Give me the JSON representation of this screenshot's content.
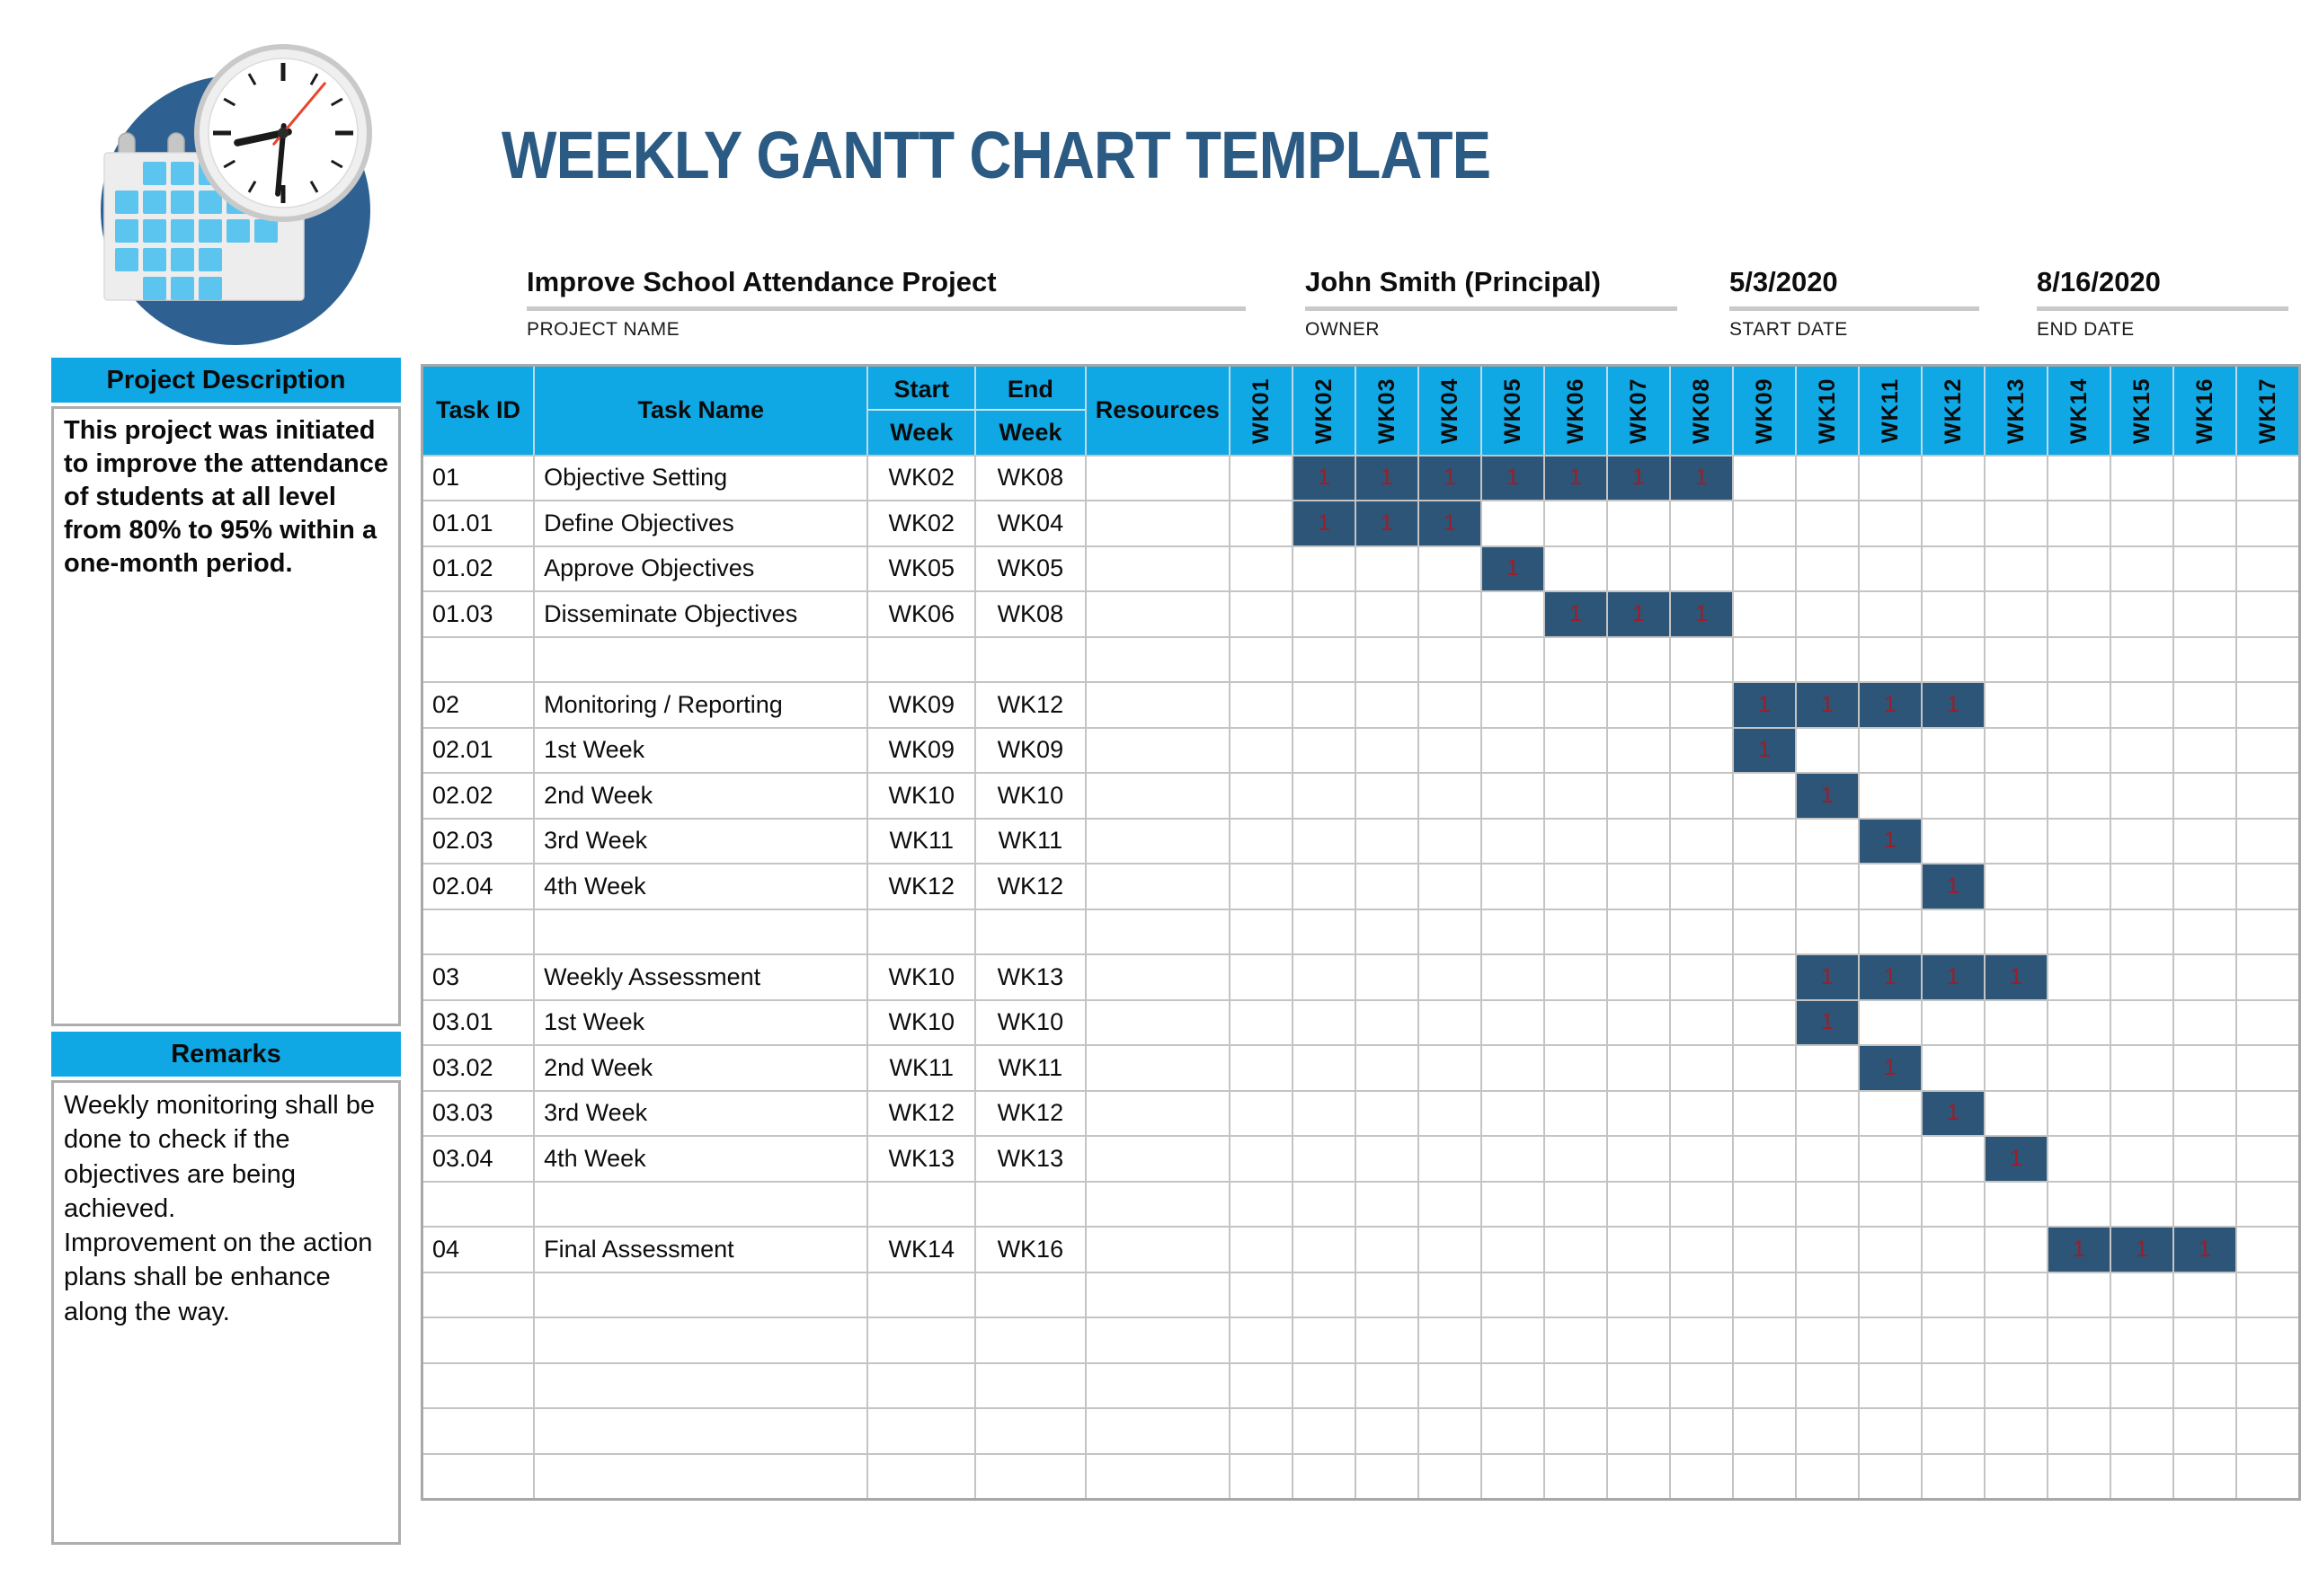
{
  "title": "WEEKLY GANTT CHART TEMPLATE",
  "logo": {
    "icon": "calendar-clock-logo",
    "parts": [
      "calendar-icon",
      "clock-icon"
    ]
  },
  "project_info": {
    "project_name": {
      "value": "Improve School Attendance Project",
      "label": "PROJECT NAME"
    },
    "owner": {
      "value": "John Smith (Principal)",
      "label": "OWNER"
    },
    "start_date": {
      "value": "5/3/2020",
      "label": "START DATE"
    },
    "end_date": {
      "value": "8/16/2020",
      "label": "END DATE"
    }
  },
  "sidebar": {
    "description": {
      "header": "Project Description",
      "body": "This project was initiated to improve the attendance of students at all level from 80% to 95% within a one-month period."
    },
    "remarks": {
      "header": "Remarks",
      "body": "Weekly monitoring shall be done to check if the objectives are being achieved.\nImprovement on the action plans shall be enhance along the way."
    }
  },
  "table": {
    "columns": {
      "task_id": "Task ID",
      "task_name": "Task Name",
      "start_week": {
        "line1": "Start",
        "line2": "Week"
      },
      "end_week": {
        "line1": "End",
        "line2": "Week"
      },
      "resources": "Resources"
    },
    "week_columns": [
      "WK01",
      "WK02",
      "WK03",
      "WK04",
      "WK05",
      "WK06",
      "WK07",
      "WK08",
      "WK09",
      "WK10",
      "WK11",
      "WK12",
      "WK13",
      "WK14",
      "WK15",
      "WK16",
      "WK17"
    ],
    "bar_value": "1",
    "rows": [
      {
        "task_id": "01",
        "task_name": "Objective Setting",
        "start_week": "WK02",
        "end_week": "WK08",
        "resources": "",
        "bar_weeks": [
          2,
          3,
          4,
          5,
          6,
          7,
          8
        ]
      },
      {
        "task_id": "01.01",
        "task_name": "Define Objectives",
        "start_week": "WK02",
        "end_week": "WK04",
        "resources": "",
        "bar_weeks": [
          2,
          3,
          4
        ]
      },
      {
        "task_id": "01.02",
        "task_name": "Approve Objectives",
        "start_week": "WK05",
        "end_week": "WK05",
        "resources": "",
        "bar_weeks": [
          5
        ]
      },
      {
        "task_id": "01.03",
        "task_name": "Disseminate Objectives",
        "start_week": "WK06",
        "end_week": "WK08",
        "resources": "",
        "bar_weeks": [
          6,
          7,
          8
        ]
      },
      {
        "task_id": "",
        "task_name": "",
        "start_week": "",
        "end_week": "",
        "resources": "",
        "bar_weeks": []
      },
      {
        "task_id": "02",
        "task_name": "Monitoring / Reporting",
        "start_week": "WK09",
        "end_week": "WK12",
        "resources": "",
        "bar_weeks": [
          9,
          10,
          11,
          12
        ]
      },
      {
        "task_id": "02.01",
        "task_name": "1st Week",
        "start_week": "WK09",
        "end_week": "WK09",
        "resources": "",
        "bar_weeks": [
          9
        ]
      },
      {
        "task_id": "02.02",
        "task_name": "2nd Week",
        "start_week": "WK10",
        "end_week": "WK10",
        "resources": "",
        "bar_weeks": [
          10
        ]
      },
      {
        "task_id": "02.03",
        "task_name": "3rd Week",
        "start_week": "WK11",
        "end_week": "WK11",
        "resources": "",
        "bar_weeks": [
          11
        ]
      },
      {
        "task_id": "02.04",
        "task_name": "4th Week",
        "start_week": "WK12",
        "end_week": "WK12",
        "resources": "",
        "bar_weeks": [
          12
        ]
      },
      {
        "task_id": "",
        "task_name": "",
        "start_week": "",
        "end_week": "",
        "resources": "",
        "bar_weeks": []
      },
      {
        "task_id": "03",
        "task_name": "Weekly Assessment",
        "start_week": "WK10",
        "end_week": "WK13",
        "resources": "",
        "bar_weeks": [
          10,
          11,
          12,
          13
        ]
      },
      {
        "task_id": "03.01",
        "task_name": "1st Week",
        "start_week": "WK10",
        "end_week": "WK10",
        "resources": "",
        "bar_weeks": [
          10
        ]
      },
      {
        "task_id": "03.02",
        "task_name": "2nd Week",
        "start_week": "WK11",
        "end_week": "WK11",
        "resources": "",
        "bar_weeks": [
          11
        ]
      },
      {
        "task_id": "03.03",
        "task_name": "3rd Week",
        "start_week": "WK12",
        "end_week": "WK12",
        "resources": "",
        "bar_weeks": [
          12
        ]
      },
      {
        "task_id": "03.04",
        "task_name": "4th Week",
        "start_week": "WK13",
        "end_week": "WK13",
        "resources": "",
        "bar_weeks": [
          13
        ]
      },
      {
        "task_id": "",
        "task_name": "",
        "start_week": "",
        "end_week": "",
        "resources": "",
        "bar_weeks": []
      },
      {
        "task_id": "04",
        "task_name": "Final Assessment",
        "start_week": "WK14",
        "end_week": "WK16",
        "resources": "",
        "bar_weeks": [
          14,
          15,
          16
        ]
      },
      {
        "task_id": "",
        "task_name": "",
        "start_week": "",
        "end_week": "",
        "resources": "",
        "bar_weeks": []
      },
      {
        "task_id": "",
        "task_name": "",
        "start_week": "",
        "end_week": "",
        "resources": "",
        "bar_weeks": []
      },
      {
        "task_id": "",
        "task_name": "",
        "start_week": "",
        "end_week": "",
        "resources": "",
        "bar_weeks": []
      },
      {
        "task_id": "",
        "task_name": "",
        "start_week": "",
        "end_week": "",
        "resources": "",
        "bar_weeks": []
      },
      {
        "task_id": "",
        "task_name": "",
        "start_week": "",
        "end_week": "",
        "resources": "",
        "bar_weeks": []
      }
    ]
  },
  "colors": {
    "header_cyan": "#0FA8E4",
    "gantt_bar_navy": "#2C5577",
    "gantt_value_red": "#9E1D28",
    "title_blue": "#2B5A83",
    "grid_gray": "#C4C4C4",
    "underline_gray": "#C9C9C9",
    "logo_circle_blue": "#2E6191",
    "calendar_square_blue": "#5CC5EF",
    "clock_second_hand_red": "#E8452B"
  }
}
